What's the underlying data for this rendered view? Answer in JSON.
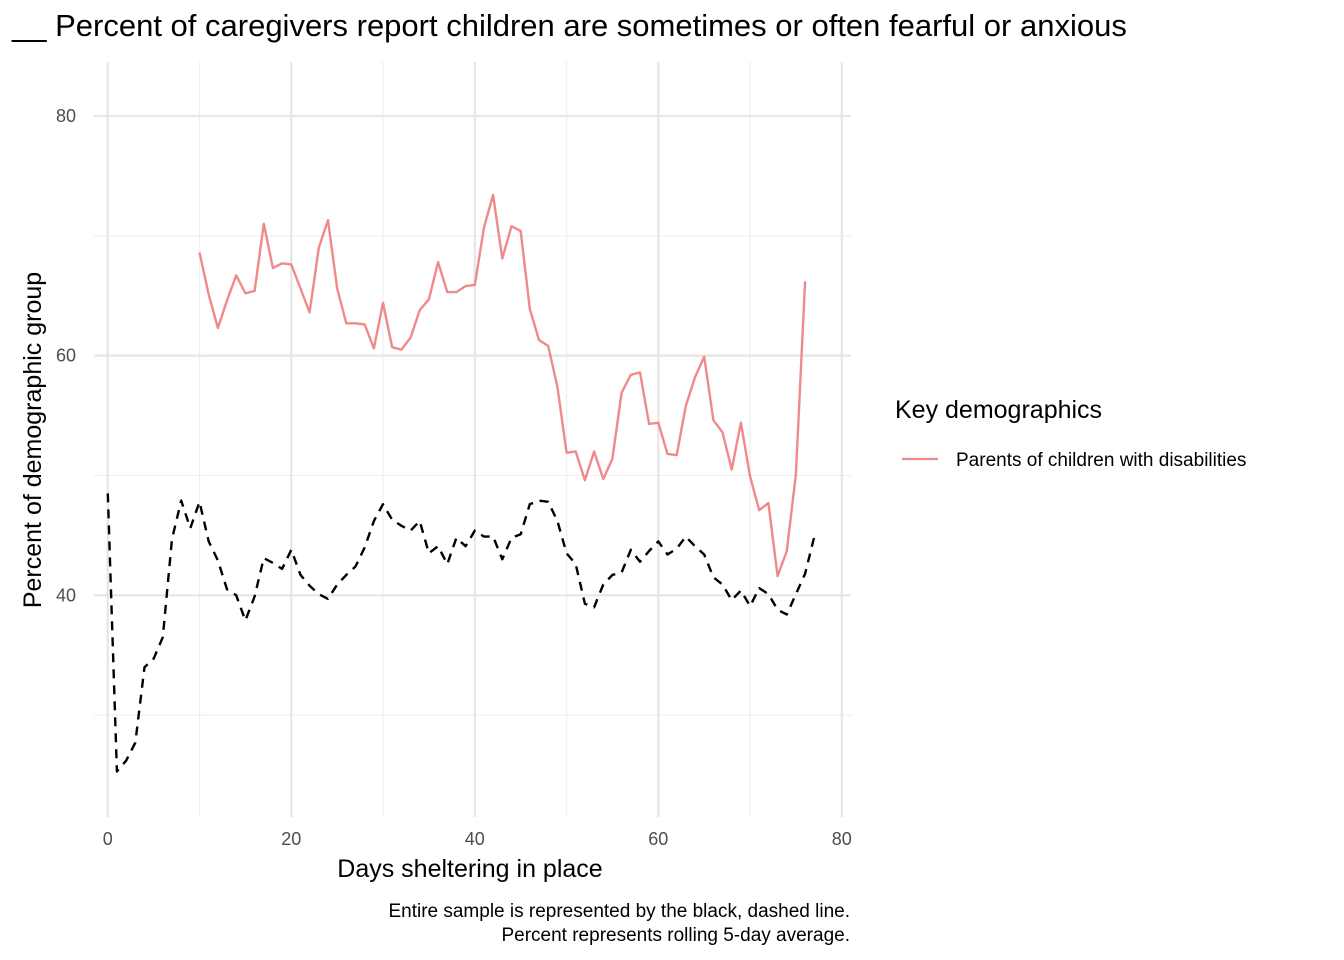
{
  "chart_data": {
    "type": "line",
    "title": "__ Percent of caregivers report children are sometimes or often fearful or anxious",
    "xlabel": "Days sheltering in place",
    "ylabel": "Percent of demographic group",
    "xlim": [
      -1.5,
      81
    ],
    "ylim": [
      21.5,
      84.5
    ],
    "x_ticks": [
      0,
      20,
      40,
      60,
      80
    ],
    "y_ticks": [
      40,
      60,
      80
    ],
    "grid": true,
    "legend": {
      "title": "Key demographics",
      "position": "right"
    },
    "caption": [
      "Entire sample is represented by the black, dashed line.",
      "Percent represents rolling 5-day average."
    ],
    "series": [
      {
        "name": "Parents of children with disabilities",
        "color": "#f08a8a",
        "style": "solid",
        "x": [
          10,
          11,
          12,
          13,
          14,
          15,
          16,
          17,
          18,
          19,
          20,
          21,
          22,
          23,
          24,
          25,
          26,
          27,
          28,
          29,
          30,
          31,
          32,
          33,
          34,
          35,
          36,
          37,
          38,
          39,
          40,
          41,
          42,
          43,
          44,
          45,
          46,
          47,
          48,
          49,
          50,
          51,
          52,
          53,
          54,
          55,
          56,
          57,
          58,
          59,
          60,
          61,
          62,
          63,
          64,
          65,
          66,
          67,
          68,
          69,
          70,
          71,
          72,
          73,
          74,
          75,
          76
        ],
        "values": [
          68.6,
          65.1,
          62.3,
          64.6,
          66.7,
          65.2,
          65.4,
          71.0,
          67.3,
          67.7,
          67.6,
          65.6,
          63.6,
          69.0,
          71.3,
          65.6,
          62.7,
          62.7,
          62.6,
          60.6,
          64.4,
          60.7,
          60.5,
          61.5,
          63.8,
          64.7,
          67.8,
          65.3,
          65.3,
          65.8,
          65.9,
          70.7,
          73.4,
          68.1,
          70.8,
          70.4,
          63.9,
          61.3,
          60.8,
          57.4,
          51.9,
          52.0,
          49.6,
          52.0,
          49.7,
          51.4,
          56.9,
          58.4,
          58.6,
          54.3,
          54.4,
          51.8,
          51.7,
          55.8,
          58.2,
          59.9,
          54.6,
          53.6,
          50.5,
          54.4,
          49.9,
          47.1,
          47.7,
          41.6,
          43.7,
          50.1,
          66.2
        ]
      },
      {
        "name": "",
        "color": "#000000",
        "style": "dashed",
        "x": [
          0,
          1,
          2,
          3,
          4,
          5,
          6,
          7,
          8,
          9,
          10,
          11,
          12,
          13,
          14,
          15,
          16,
          17,
          18,
          19,
          20,
          21,
          22,
          23,
          24,
          25,
          26,
          27,
          28,
          29,
          30,
          31,
          32,
          33,
          34,
          35,
          36,
          37,
          38,
          39,
          40,
          41,
          42,
          43,
          44,
          45,
          46,
          47,
          48,
          49,
          50,
          51,
          52,
          53,
          54,
          55,
          56,
          57,
          58,
          59,
          60,
          61,
          62,
          63,
          64,
          65,
          66,
          67,
          68,
          69,
          70,
          71,
          72,
          73,
          74,
          75,
          76,
          77
        ],
        "values": [
          48.5,
          25.3,
          26.2,
          27.7,
          34.0,
          34.7,
          36.5,
          44.7,
          47.9,
          45.6,
          47.8,
          44.5,
          42.9,
          40.5,
          40.0,
          37.9,
          39.9,
          43.1,
          42.7,
          42.2,
          43.8,
          41.7,
          40.8,
          40.1,
          39.7,
          40.9,
          41.7,
          42.4,
          44.0,
          46.2,
          47.6,
          46.3,
          45.8,
          45.4,
          46.2,
          43.5,
          44.1,
          42.6,
          44.8,
          44.1,
          45.4,
          44.9,
          44.9,
          43.0,
          44.8,
          45.1,
          47.6,
          47.9,
          47.8,
          46.2,
          43.5,
          42.6,
          39.3,
          39.0,
          40.9,
          41.7,
          41.9,
          43.8,
          42.8,
          43.7,
          44.5,
          43.4,
          43.9,
          44.9,
          44.1,
          43.4,
          41.5,
          40.9,
          39.6,
          40.4,
          39.1,
          40.6,
          40.1,
          38.8,
          38.4,
          40.1,
          41.8,
          44.9
        ]
      }
    ]
  }
}
